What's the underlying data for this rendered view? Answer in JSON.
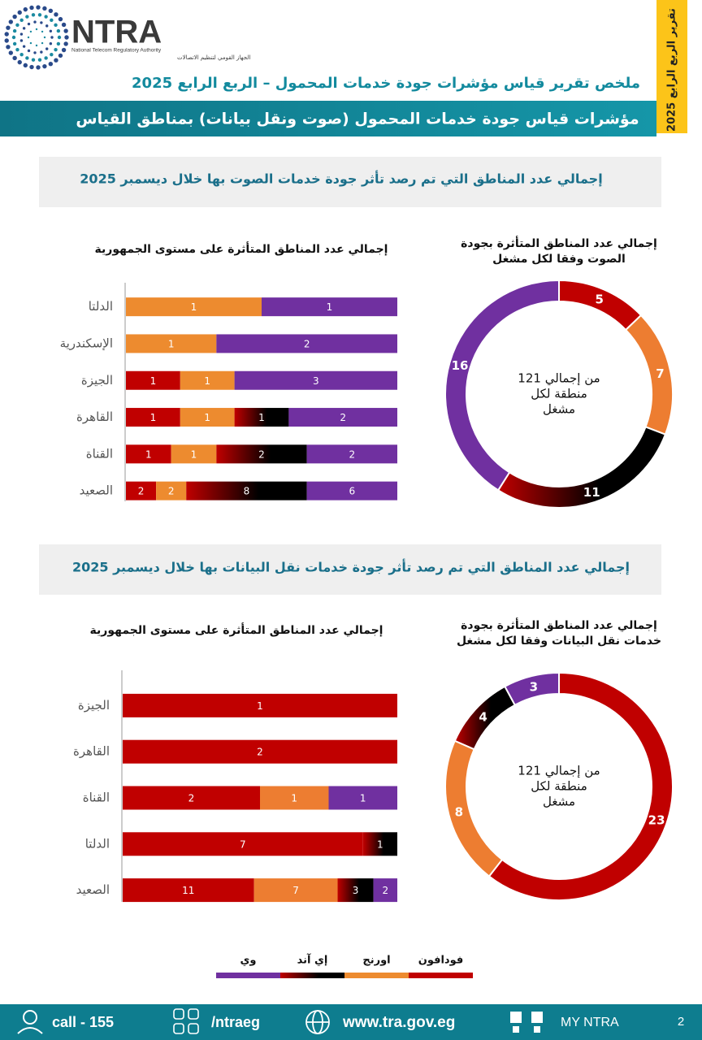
{
  "header": {
    "logo_text": "NTRA",
    "logo_en": "National Telecom Regulatory Authority",
    "logo_ar": "الجهاز القومي لتنظيم الاتصالات",
    "side_tab": "تقرير الربع الرابع 2025",
    "title": "ملخص تقرير قياس مؤشرات جودة خدمات المحمول – الربع الرابع 2025",
    "banner": "مؤشرات قياس جودة خدمات المحمول (صوت ونقل بيانات)  بمناطق القياس"
  },
  "sections": [
    {
      "heading": "إجمالي عدد المناطق التي تم رصد تأثر جودة خدمات الصوت بها خلال ديسمبر  2025"
    },
    {
      "heading": "إجمالي عدد المناطق التي تم رصد تأثر جودة خدمات نقل البيانات بها خلال ديسمبر  2025"
    }
  ],
  "chart_data": [
    {
      "type": "bar",
      "orientation": "horizontal",
      "stacking": "percent",
      "title": "إجمالي عدد المناطق المتأثرة على مستوى الجمهورية",
      "categories": [
        "الدلتا",
        "الإسكندرية",
        "الجيزة",
        "القاهرة",
        "القناة",
        "الصعيد"
      ],
      "series": [
        {
          "name": "فودافون",
          "color": "#c00000",
          "values": [
            null,
            null,
            1,
            1,
            1,
            2
          ]
        },
        {
          "name": "اورنج",
          "color": "#ed8b2f",
          "values": [
            1,
            1,
            1,
            1,
            1,
            2
          ]
        },
        {
          "name": "إي آند",
          "color": "#000000",
          "gradient": true,
          "values": [
            null,
            null,
            null,
            1,
            2,
            8
          ]
        },
        {
          "name": "وي",
          "color": "#7030a0",
          "values": [
            1,
            2,
            3,
            2,
            2,
            6
          ]
        }
      ]
    },
    {
      "type": "donut",
      "title": [
        "إجمالي عدد المناطق المتأثرة بجودة",
        "الصوت وفقا لكل مشغل"
      ],
      "center_text": [
        "من إجمالي 121",
        "منطقة لكل",
        "مشغل"
      ],
      "values": [
        5,
        7,
        11,
        16
      ],
      "colors": [
        "#c00000",
        "#ed7d31",
        "#000000",
        "#7030a0"
      ],
      "gradient_index": 2
    },
    {
      "type": "bar",
      "orientation": "horizontal",
      "stacking": "percent",
      "title": "إجمالي عدد المناطق المتأثرة على مستوى الجمهورية",
      "categories": [
        "الجيزة",
        "القاهرة",
        "القناة",
        "الدلتا",
        "الصعيد"
      ],
      "series": [
        {
          "color": "#c00000",
          "values": [
            1,
            2,
            2,
            7,
            11
          ]
        },
        {
          "color": "#ed7d31",
          "values": [
            null,
            null,
            1,
            null,
            7
          ]
        },
        {
          "color": "#000000",
          "gradient": true,
          "values": [
            null,
            null,
            null,
            1,
            3
          ]
        },
        {
          "color": "#7030a0",
          "values": [
            null,
            null,
            1,
            null,
            2
          ]
        }
      ]
    },
    {
      "type": "donut",
      "title": [
        "إجمالي عدد المناطق المتأثرة بجودة",
        "خدمات نقل البيانات وفقا لكل مشغل"
      ],
      "center_text": [
        "من إجمالي 121",
        "منطقة لكل",
        "مشغل"
      ],
      "values": [
        23,
        8,
        4,
        3
      ],
      "colors": [
        "#c00000",
        "#ed7d31",
        "#000000",
        "#7030a0"
      ],
      "gradient_index": 2
    }
  ],
  "footer": {
    "call": "call - 155",
    "social": "/ntraeg",
    "website": "www.tra.gov.eg",
    "app": "MY NTRA",
    "page": "2"
  }
}
